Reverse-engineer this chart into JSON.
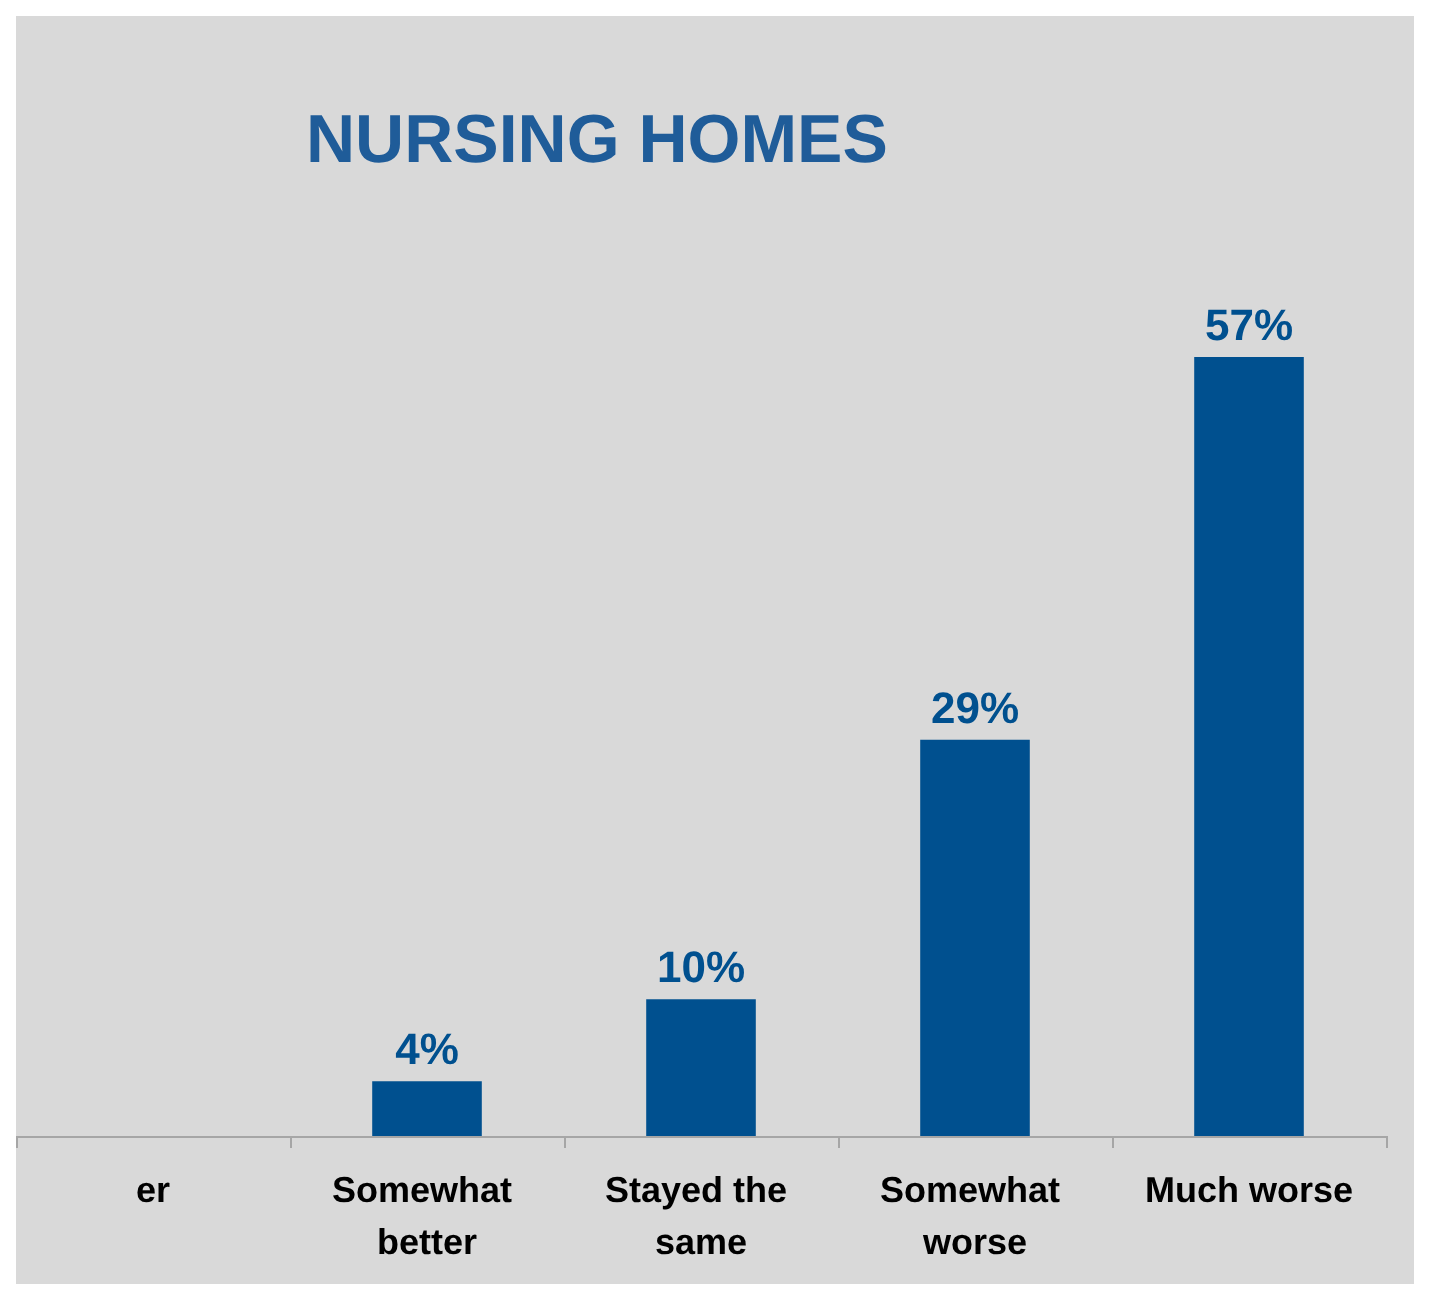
{
  "chart_data": {
    "type": "bar",
    "title": "NURSING HOMES",
    "categories": [
      "er",
      "Somewhat better",
      "Stayed the same",
      "Somewhat worse",
      "Much worse"
    ],
    "values": [
      null,
      4,
      10,
      29,
      57
    ],
    "value_labels": [
      null,
      "4%",
      "10%",
      "29%",
      "57%"
    ],
    "color": "#00508f",
    "tick_labels": "x"
  }
}
